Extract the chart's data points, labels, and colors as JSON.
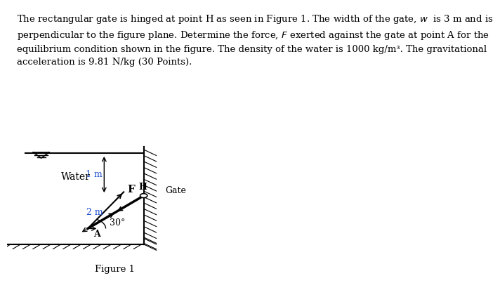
{
  "bg_color": "#ffffff",
  "text_color": "#000000",
  "fig_width": 6.83,
  "fig_height": 3.83,
  "paragraph": "The rectangular gate is hinged at point H as seen in Figure 1. The width of the gate, ω  is 3 m and is\nperpendicular to the figure plane. Determine the force, F exerted against the gate at point A for the\nequilibrium condition shown in the figure. The density of the water is 1000 kg/m³. The gravitational\nacceleration is 9.81 N/kg (30 Points).",
  "figure_label": "Figure 1",
  "label_1m": "1 m",
  "label_2m": "2 m",
  "label_water": "Water",
  "label_gate": "Gate",
  "label_H": "H",
  "label_A": "A",
  "label_F": "F",
  "label_30": "30°",
  "hatch_color": "#000000",
  "line_color": "#000000",
  "gate_color": "#000000"
}
